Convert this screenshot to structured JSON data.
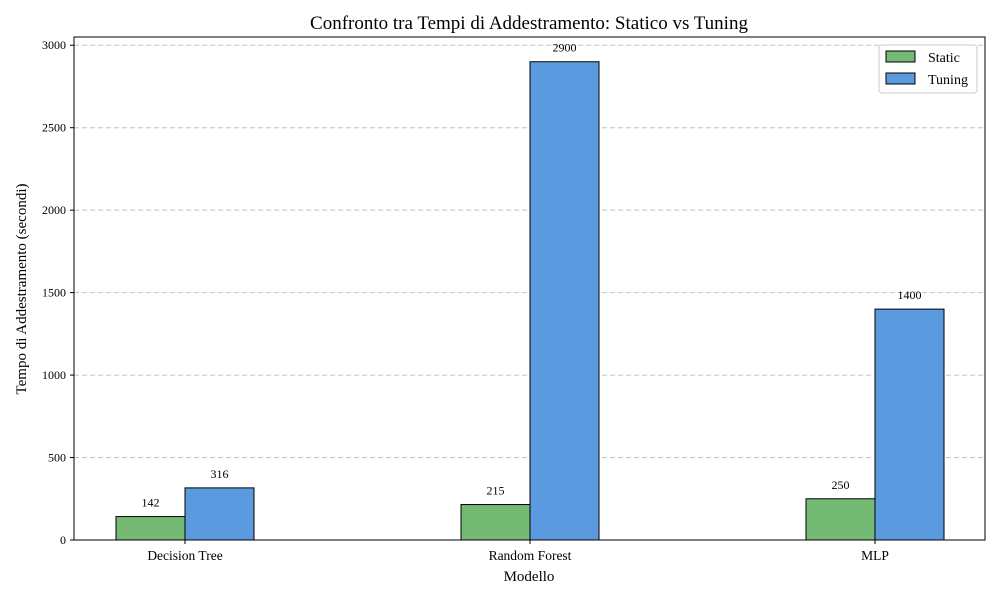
{
  "chart_data": {
    "type": "bar",
    "title": "Confronto tra Tempi di Addestramento: Statico vs Tuning",
    "xlabel": "Modello",
    "ylabel": "Tempo di Addestramento (secondi)",
    "categories": [
      "Decision Tree",
      "Random Forest",
      "MLP"
    ],
    "series": [
      {
        "name": "Static",
        "values": [
          142,
          215,
          250
        ],
        "color": "#74b974"
      },
      {
        "name": "Tuning",
        "values": [
          316,
          2900,
          1400
        ],
        "color": "#5b9ade"
      }
    ],
    "ylim": [
      0,
      3050
    ],
    "yticks": [
      0,
      500,
      1000,
      1500,
      2000,
      2500,
      3000
    ],
    "grid": true,
    "legend_position": "top-right",
    "data_labels": true
  }
}
